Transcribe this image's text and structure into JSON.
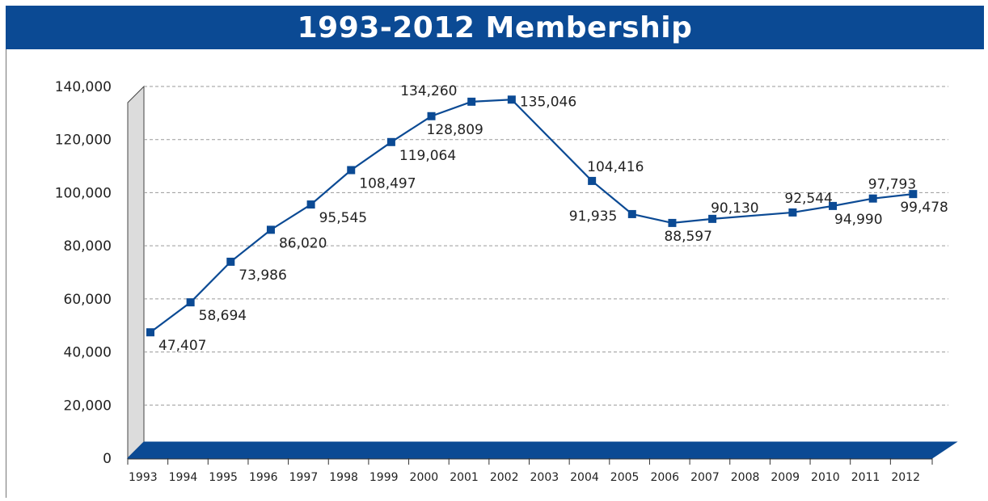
{
  "colors": {
    "title_bg": "#0b4a94",
    "series": "#0b4a94",
    "gridline": "#9a9a9a",
    "wall": "#dcdcdc"
  },
  "chart_data": {
    "type": "line",
    "title": "1993-2012 Membership",
    "xlabel": "",
    "ylabel": "",
    "grid": true,
    "ylim": [
      0,
      140000
    ],
    "y_ticks": [
      "0",
      "20,000",
      "40,000",
      "60,000",
      "80,000",
      "100,000",
      "120,000",
      "140,000"
    ],
    "x_ticks": [
      "1993",
      "1994",
      "1995",
      "1996",
      "1997",
      "1998",
      "1999",
      "2000",
      "2001",
      "2002",
      "2003",
      "2004",
      "2005",
      "2006",
      "2007",
      "2008",
      "2009",
      "2010",
      "2011",
      "2012"
    ],
    "series": [
      {
        "points": [
          {
            "x": 1993.0,
            "y": 47407,
            "label": "47,407"
          },
          {
            "x": 1994.0,
            "y": 58694,
            "label": "58,694"
          },
          {
            "x": 1995.0,
            "y": 73986,
            "label": "73,986"
          },
          {
            "x": 1996.0,
            "y": 86020,
            "label": "86,020"
          },
          {
            "x": 1997.0,
            "y": 95545,
            "label": "95,545"
          },
          {
            "x": 1998.0,
            "y": 108497,
            "label": "108,497"
          },
          {
            "x": 1999.0,
            "y": 119064,
            "label": "119,064"
          },
          {
            "x": 2000.0,
            "y": 128809,
            "label": "128,809"
          },
          {
            "x": 2001.0,
            "y": 134260,
            "label": "134,260"
          },
          {
            "x": 2002.0,
            "y": 135046,
            "label": "135,046"
          },
          {
            "x": 2004.0,
            "y": 104416,
            "label": "104,416"
          },
          {
            "x": 2005.0,
            "y": 91935,
            "label": "91,935"
          },
          {
            "x": 2006.0,
            "y": 88597,
            "label": "88,597"
          },
          {
            "x": 2007.0,
            "y": 90130,
            "label": "90,130"
          },
          {
            "x": 2009.0,
            "y": 92544,
            "label": "92,544"
          },
          {
            "x": 2010.0,
            "y": 94990,
            "label": "94,990"
          },
          {
            "x": 2011.0,
            "y": 97793,
            "label": "97,793"
          },
          {
            "x": 2012.0,
            "y": 99478,
            "label": "99,478"
          }
        ]
      }
    ]
  }
}
